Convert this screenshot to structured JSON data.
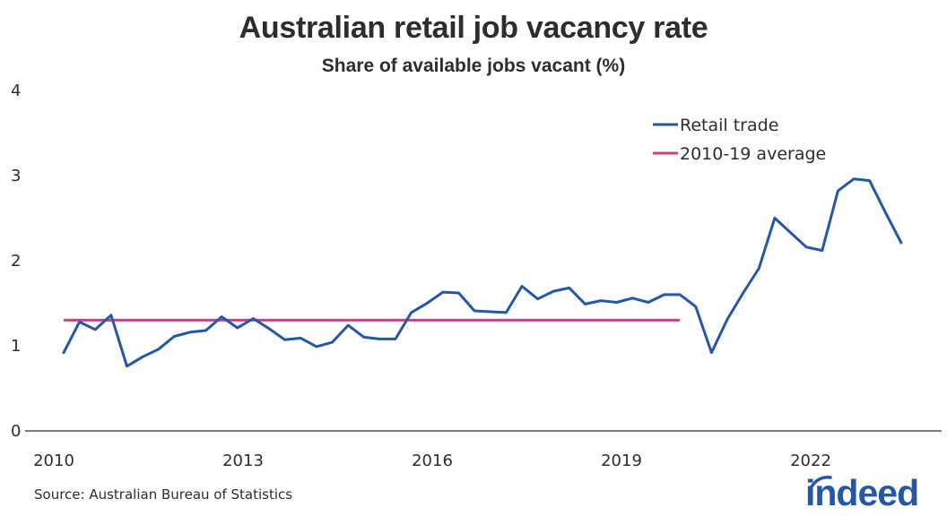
{
  "header": {
    "title": "Australian retail job vacancy rate",
    "subtitle": "Share of available jobs vacant (%)"
  },
  "footer": {
    "source": "Source: Australian Bureau of Statistics",
    "logo_text": "indeed"
  },
  "legend": {
    "items": [
      {
        "label": "Retail trade",
        "color": "#2557a7"
      },
      {
        "label": "2010-19 average",
        "color": "#c6428a"
      }
    ]
  },
  "axes": {
    "y_ticks": [
      "0",
      "1",
      "2",
      "3",
      "4"
    ],
    "x_ticks": [
      "2010",
      "2013",
      "2016",
      "2019",
      "2022"
    ]
  },
  "colors": {
    "retail": "#2557a7",
    "average": "#c6428a",
    "axis": "#2d2d2d",
    "logo": "#2557a7"
  },
  "chart_data": {
    "type": "line",
    "title": "Australian retail job vacancy rate",
    "subtitle": "Share of available jobs vacant (%)",
    "xlabel": "",
    "ylabel": "",
    "ylim": [
      0,
      4
    ],
    "y_ticks": [
      0,
      1,
      2,
      3,
      4
    ],
    "x_ticks": [
      "2010",
      "2013",
      "2016",
      "2019",
      "2022"
    ],
    "grid": false,
    "legend_position": "upper right (inside plot)",
    "frequency": "quarterly",
    "x": [
      "2010-Q1",
      "2010-Q2",
      "2010-Q3",
      "2010-Q4",
      "2011-Q1",
      "2011-Q2",
      "2011-Q3",
      "2011-Q4",
      "2012-Q1",
      "2012-Q2",
      "2012-Q3",
      "2012-Q4",
      "2013-Q1",
      "2013-Q2",
      "2013-Q3",
      "2013-Q4",
      "2014-Q1",
      "2014-Q2",
      "2014-Q3",
      "2014-Q4",
      "2015-Q1",
      "2015-Q2",
      "2015-Q3",
      "2015-Q4",
      "2016-Q1",
      "2016-Q2",
      "2016-Q3",
      "2016-Q4",
      "2017-Q1",
      "2017-Q2",
      "2017-Q3",
      "2017-Q4",
      "2018-Q1",
      "2018-Q2",
      "2018-Q3",
      "2018-Q4",
      "2019-Q1",
      "2019-Q2",
      "2019-Q3",
      "2019-Q4",
      "2020-Q1",
      "2020-Q2",
      "2020-Q3",
      "2020-Q4",
      "2021-Q1",
      "2021-Q2",
      "2021-Q3",
      "2021-Q4",
      "2022-Q1",
      "2022-Q2",
      "2022-Q3",
      "2022-Q4",
      "2023-Q1",
      "2023-Q2"
    ],
    "series": [
      {
        "name": "Retail trade",
        "color": "#2557a7",
        "values": [
          0.91,
          1.27,
          1.18,
          1.35,
          0.75,
          0.86,
          0.95,
          1.1,
          1.15,
          1.17,
          1.33,
          1.2,
          1.31,
          1.19,
          1.06,
          1.08,
          0.98,
          1.03,
          1.23,
          1.09,
          1.07,
          1.07,
          1.38,
          1.49,
          1.62,
          1.61,
          1.4,
          1.39,
          1.38,
          1.69,
          1.54,
          1.63,
          1.67,
          1.48,
          1.52,
          1.5,
          1.55,
          1.5,
          1.59,
          1.59,
          1.45,
          0.91,
          1.3,
          1.61,
          1.9,
          2.49,
          2.32,
          2.15,
          2.11,
          2.81,
          2.95,
          2.93,
          2.56,
          2.2
        ]
      },
      {
        "name": "2010-19 average",
        "color": "#c6428a",
        "value": 1.29,
        "x_range": [
          "2010-Q1",
          "2019-Q4"
        ]
      }
    ],
    "source": "Source: Australian Bureau of Statistics"
  }
}
